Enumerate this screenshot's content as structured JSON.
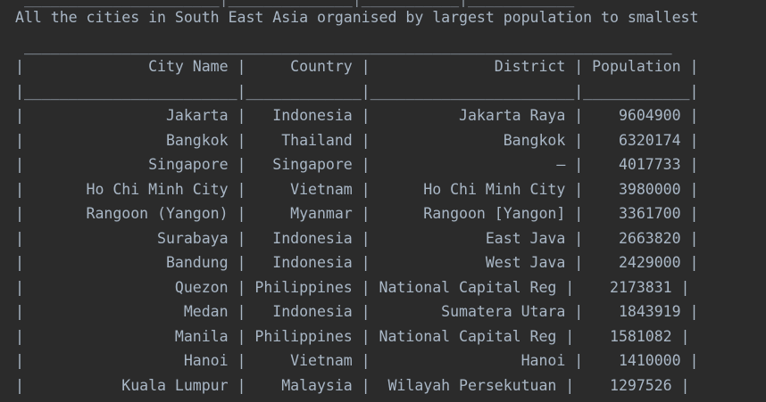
{
  "console": {
    "prev_output_line": " ______________________|______________|___________|____________",
    "heading": "All the cities in South East Asia organised by largest population to smallest",
    "table": {
      "top_border": " _________________________________________________________________________",
      "header_row": "|              City Name |     Country |              District | Population |",
      "header_separator": "|________________________|_____________|_______________________|____________|",
      "columns": [
        "City Name",
        "Country",
        "District",
        "Population"
      ],
      "rows": [
        {
          "text": "|                Jakarta |   Indonesia |          Jakarta Raya |    9604900 |",
          "city": "Jakarta",
          "country": "Indonesia",
          "district": "Jakarta Raya",
          "population": 9604900
        },
        {
          "text": "|                Bangkok |    Thailand |               Bangkok |    6320174 |",
          "city": "Bangkok",
          "country": "Thailand",
          "district": "Bangkok",
          "population": 6320174
        },
        {
          "text": "|              Singapore |   Singapore |                     – |    4017733 |",
          "city": "Singapore",
          "country": "Singapore",
          "district": "–",
          "population": 4017733
        },
        {
          "text": "|       Ho Chi Minh City |     Vietnam |      Ho Chi Minh City |    3980000 |",
          "city": "Ho Chi Minh City",
          "country": "Vietnam",
          "district": "Ho Chi Minh City",
          "population": 3980000
        },
        {
          "text": "|       Rangoon (Yangon) |     Myanmar |      Rangoon [Yangon] |    3361700 |",
          "city": "Rangoon (Yangon)",
          "country": "Myanmar",
          "district": "Rangoon [Yangon]",
          "population": 3361700
        },
        {
          "text": "|               Surabaya |   Indonesia |             East Java |    2663820 |",
          "city": "Surabaya",
          "country": "Indonesia",
          "district": "East Java",
          "population": 2663820
        },
        {
          "text": "|                Bandung |   Indonesia |             West Java |    2429000 |",
          "city": "Bandung",
          "country": "Indonesia",
          "district": "West Java",
          "population": 2429000
        },
        {
          "text": "|                 Quezon | Philippines | National Capital Reg |    2173831 |",
          "city": "Quezon",
          "country": "Philippines",
          "district": "National Capital Reg",
          "population": 2173831
        },
        {
          "text": "|                  Medan |   Indonesia |        Sumatera Utara |    1843919 |",
          "city": "Medan",
          "country": "Indonesia",
          "district": "Sumatera Utara",
          "population": 1843919
        },
        {
          "text": "|                 Manila | Philippines | National Capital Reg |    1581082 |",
          "city": "Manila",
          "country": "Philippines",
          "district": "National Capital Reg",
          "population": 1581082
        },
        {
          "text": "|                  Hanoi |     Vietnam |                 Hanoi |    1410000 |",
          "city": "Hanoi",
          "country": "Vietnam",
          "district": "Hanoi",
          "population": 1410000
        },
        {
          "text": "|           Kuala Lumpur |    Malaysia |  Wilayah Persekutuan |    1297526 |",
          "city": "Kuala Lumpur",
          "country": "Malaysia",
          "district": "Wilayah Persekutuan",
          "population": 1297526
        }
      ]
    }
  }
}
